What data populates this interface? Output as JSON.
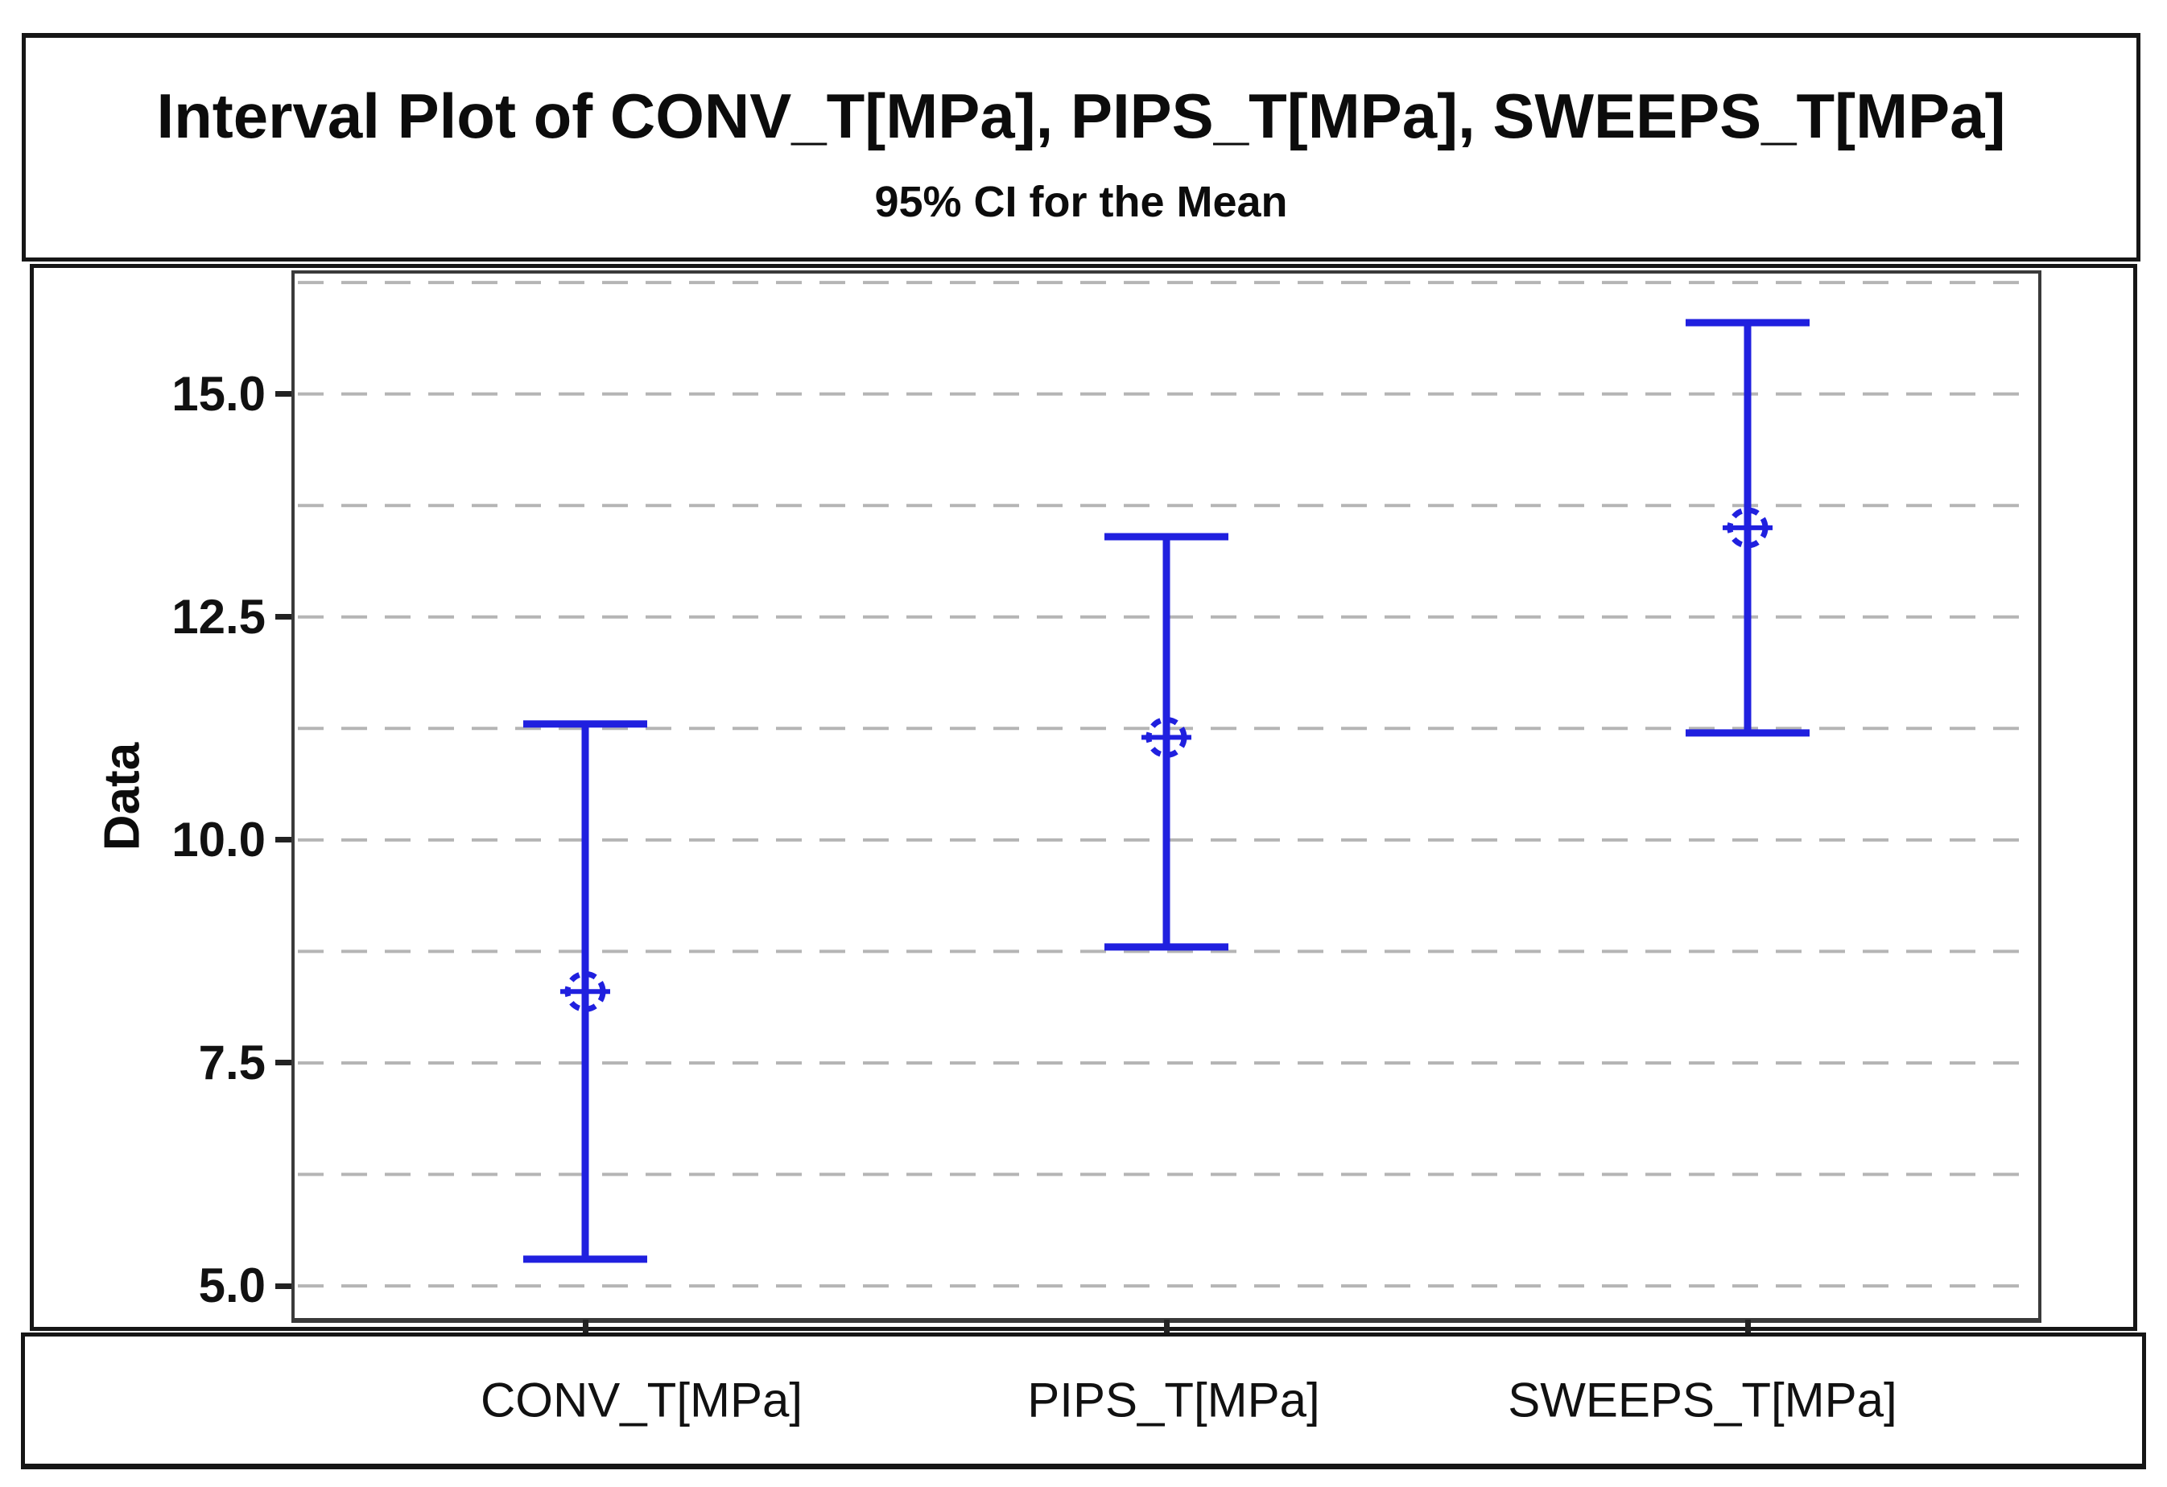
{
  "figure": {
    "title": "Interval Plot of CONV_T[MPa], PIPS_T[MPa], SWEEPS_T[MPa]",
    "subtitle": "95% CI for the Mean"
  },
  "chart_data": {
    "type": "interval",
    "title": "Interval Plot of CONV_T[MPa], PIPS_T[MPa], SWEEPS_T[MPa]",
    "subtitle": "95% CI for the Mean",
    "confidence_level": "95%",
    "ylabel": "Data",
    "categories": [
      "CONV_T[MPa]",
      "PIPS_T[MPa]",
      "SWEEPS_T[MPa]"
    ],
    "series": [
      {
        "name": "CONV_T[MPa]",
        "mean": 8.3,
        "ci_lower": 5.3,
        "ci_upper": 11.3
      },
      {
        "name": "PIPS_T[MPa]",
        "mean": 11.15,
        "ci_lower": 8.8,
        "ci_upper": 13.4
      },
      {
        "name": "SWEEPS_T[MPa]",
        "mean": 13.5,
        "ci_lower": 11.2,
        "ci_upper": 15.8
      }
    ],
    "yticks": [
      5.0,
      7.5,
      10.0,
      12.5,
      15.0
    ],
    "ytick_labels": [
      "5.0",
      "7.5",
      "10.0",
      "12.5",
      "15.0"
    ],
    "gridline_interval": 1.25,
    "ylim": [
      4.64,
      16.35
    ],
    "grid": "horizontal-dashed",
    "legend": "none",
    "colors": {
      "interval": "#2020DF",
      "gridline": "#b5b5b5",
      "plot_border": "#3a3a3a",
      "box_border": "#161616",
      "text": "#0c0c0c"
    }
  }
}
